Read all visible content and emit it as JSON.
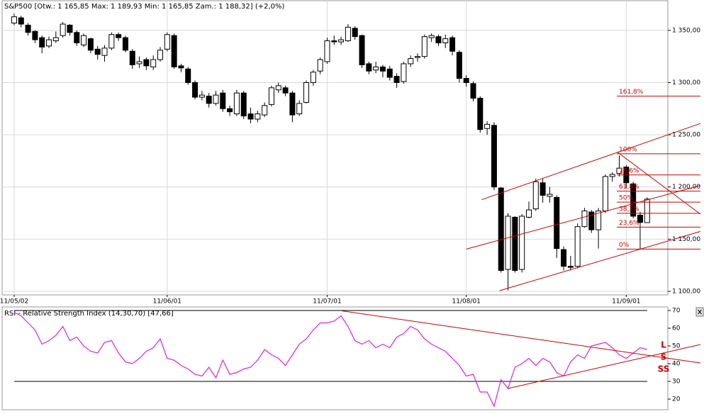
{
  "chart_data": [
    {
      "type": "candlestick",
      "title": "S&P500 [Otw.: 1 165,85 Max: 1 189,93 Min: 1 165,85 Zam.: 1 188,32] (+2,0%)",
      "open": [
        1357,
        1362,
        1355,
        1349,
        1343,
        1335,
        1340,
        1345,
        1355,
        1348,
        1336,
        1342,
        1332,
        1326,
        1333,
        1346,
        1343,
        1330,
        1318,
        1322,
        1315,
        1322,
        1332,
        1345,
        1316,
        1313,
        1300,
        1286,
        1287,
        1280,
        1290,
        1275,
        1270,
        1290,
        1270,
        1265,
        1269,
        1279,
        1293,
        1295,
        1290,
        1270,
        1281,
        1300,
        1311,
        1320,
        1340,
        1339,
        1340,
        1352,
        1345,
        1318,
        1312,
        1315,
        1313,
        1306,
        1301,
        1318,
        1324,
        1325,
        1343,
        1344,
        1338,
        1343,
        1329,
        1304,
        1299,
        1285,
        1256,
        1259,
        1199,
        1121,
        1171,
        1121,
        1171,
        1179,
        1204,
        1191,
        1190,
        1140,
        1124,
        1124,
        1162,
        1176,
        1159,
        1177,
        1210,
        1213,
        1219,
        1203,
        1173,
        1165.85
      ],
      "high": [
        1366,
        1364,
        1357,
        1350,
        1345,
        1344,
        1349,
        1358,
        1356,
        1350,
        1347,
        1343,
        1335,
        1336,
        1348,
        1348,
        1345,
        1332,
        1325,
        1324,
        1326,
        1334,
        1348,
        1347,
        1318,
        1315,
        1302,
        1292,
        1290,
        1292,
        1293,
        1278,
        1293,
        1292,
        1276,
        1273,
        1281,
        1297,
        1300,
        1297,
        1292,
        1283,
        1302,
        1312,
        1324,
        1343,
        1345,
        1344,
        1356,
        1354,
        1346,
        1320,
        1320,
        1317,
        1316,
        1309,
        1320,
        1326,
        1328,
        1346,
        1347,
        1346,
        1346,
        1345,
        1331,
        1307,
        1301,
        1287,
        1263,
        1262,
        1200,
        1175,
        1172,
        1174,
        1186,
        1208,
        1208,
        1200,
        1192,
        1143,
        1134,
        1165,
        1180,
        1178,
        1180,
        1212,
        1214,
        1230,
        1221,
        1205,
        1176,
        1189.93
      ],
      "low": [
        1355,
        1353,
        1345,
        1338,
        1328,
        1333,
        1338,
        1343,
        1345,
        1335,
        1334,
        1328,
        1322,
        1320,
        1331,
        1340,
        1329,
        1313,
        1314,
        1312,
        1312,
        1320,
        1330,
        1313,
        1310,
        1298,
        1284,
        1283,
        1276,
        1278,
        1272,
        1268,
        1268,
        1265,
        1261,
        1262,
        1267,
        1277,
        1290,
        1287,
        1262,
        1268,
        1280,
        1297,
        1308,
        1318,
        1336,
        1336,
        1339,
        1341,
        1314,
        1308,
        1309,
        1305,
        1302,
        1295,
        1299,
        1315,
        1320,
        1323,
        1339,
        1335,
        1333,
        1326,
        1300,
        1296,
        1282,
        1252,
        1250,
        1197,
        1118,
        1101,
        1118,
        1118,
        1170,
        1177,
        1185,
        1185,
        1132,
        1120,
        1120,
        1122,
        1161,
        1156,
        1141,
        1175,
        1205,
        1210,
        1199,
        1170,
        1140,
        1165.85
      ],
      "close": [
        1363,
        1356,
        1348,
        1341,
        1334,
        1341,
        1343,
        1356,
        1348,
        1338,
        1345,
        1331,
        1327,
        1333,
        1346,
        1343,
        1331,
        1317,
        1320,
        1316,
        1322,
        1331,
        1346,
        1315,
        1314,
        1300,
        1286,
        1288,
        1280,
        1288,
        1275,
        1272,
        1290,
        1268,
        1265,
        1270,
        1278,
        1295,
        1297,
        1290,
        1269,
        1280,
        1300,
        1310,
        1322,
        1340,
        1339,
        1341,
        1353,
        1344,
        1317,
        1311,
        1315,
        1311,
        1305,
        1300,
        1318,
        1323,
        1325,
        1344,
        1345,
        1338,
        1342,
        1330,
        1304,
        1300,
        1285,
        1255,
        1260,
        1200,
        1120,
        1172,
        1120,
        1172,
        1178,
        1205,
        1192,
        1193,
        1141,
        1124,
        1123,
        1162,
        1177,
        1159,
        1177,
        1210,
        1212,
        1218,
        1204,
        1172,
        1166,
        1188.32
      ],
      "up_color": "#ffffff",
      "down_color": "#000000",
      "xlim": [
        -1.73,
        93.98
      ],
      "xticks": [
        {
          "value": 0,
          "label": "11/05/02"
        },
        {
          "value": 22,
          "label": "11/06/01"
        },
        {
          "value": 45,
          "label": "11/07/01"
        },
        {
          "value": 65,
          "label": "11/08/01"
        },
        {
          "value": 88,
          "label": "11/09/01"
        }
      ],
      "ylim": [
        1096.6,
        1378.4
      ],
      "yticks": [
        {
          "value": 1100,
          "label": "1 100,00"
        },
        {
          "value": 1150,
          "label": "1 150,00"
        },
        {
          "value": 1200,
          "label": "1 200,00"
        },
        {
          "value": 1250,
          "label": "1 250,00"
        },
        {
          "value": 1300,
          "label": "1 300,00"
        },
        {
          "value": 1350,
          "label": "1 350,00"
        }
      ],
      "grid": true,
      "line_color": "#cc0000",
      "fibonacci": [
        {
          "value": 1287,
          "label": "161,8%"
        },
        {
          "value": 1231.8,
          "label": "100%"
        },
        {
          "value": 1211.5,
          "label": "78,6%"
        },
        {
          "value": 1196,
          "label": "61,8%"
        },
        {
          "value": 1185.5,
          "label": "50%"
        },
        {
          "value": 1174.8,
          "label": "38,2%"
        },
        {
          "value": 1161.5,
          "label": "23,6%"
        },
        {
          "value": 1140.5,
          "label": "0%"
        }
      ],
      "trendlines": [
        {
          "x": [
            67.2,
            98.66
          ],
          "y": [
            1187.8,
            1260.8
          ]
        },
        {
          "x": [
            65,
            98.66
          ],
          "y": [
            1140.5,
            1201.4
          ]
        },
        {
          "x": [
            69.8,
            98.66
          ],
          "y": [
            1100.7,
            1157.4
          ]
        },
        {
          "x": [
            86.8,
            98.66
          ],
          "y": [
            1233,
            1174
          ]
        }
      ]
    },
    {
      "type": "line",
      "title": "RSI - Relative Strength Index (14,30,70) [47,66]",
      "values": [
        69,
        67,
        63,
        59,
        51,
        53,
        56,
        61,
        53,
        55,
        50,
        47,
        46,
        52,
        53,
        46,
        41,
        40,
        43,
        47,
        49,
        54,
        43,
        42,
        39,
        37,
        34,
        33,
        38,
        32,
        42,
        34,
        35,
        37,
        38,
        42,
        48,
        45,
        43,
        39,
        45,
        51,
        54,
        59,
        63,
        63,
        64,
        67,
        61,
        53,
        51,
        53,
        49,
        51,
        49,
        55,
        57,
        61,
        59,
        54,
        51,
        49,
        47,
        43,
        39,
        33,
        34,
        24,
        24,
        16,
        31,
        26,
        38,
        40,
        43,
        39,
        43,
        41,
        35,
        33,
        41,
        45,
        43,
        50,
        51,
        52,
        49,
        45,
        43,
        46,
        49,
        48
      ],
      "color": "#e020e0",
      "xlim": [
        -1.73,
        93.98
      ],
      "ylim": [
        14,
        72
      ],
      "yticks": [
        70,
        60,
        50,
        40,
        30,
        20
      ],
      "reference_lines": [
        70,
        30
      ],
      "line_color": "#cc0000",
      "trendlines": [
        {
          "x": [
            47.1,
            98.66
          ],
          "y": [
            69.8,
            40.4
          ]
        },
        {
          "x": [
            71,
            98.66
          ],
          "y": [
            26,
            50.8
          ]
        }
      ],
      "annotations": [
        "L",
        "S",
        "SS"
      ]
    }
  ]
}
